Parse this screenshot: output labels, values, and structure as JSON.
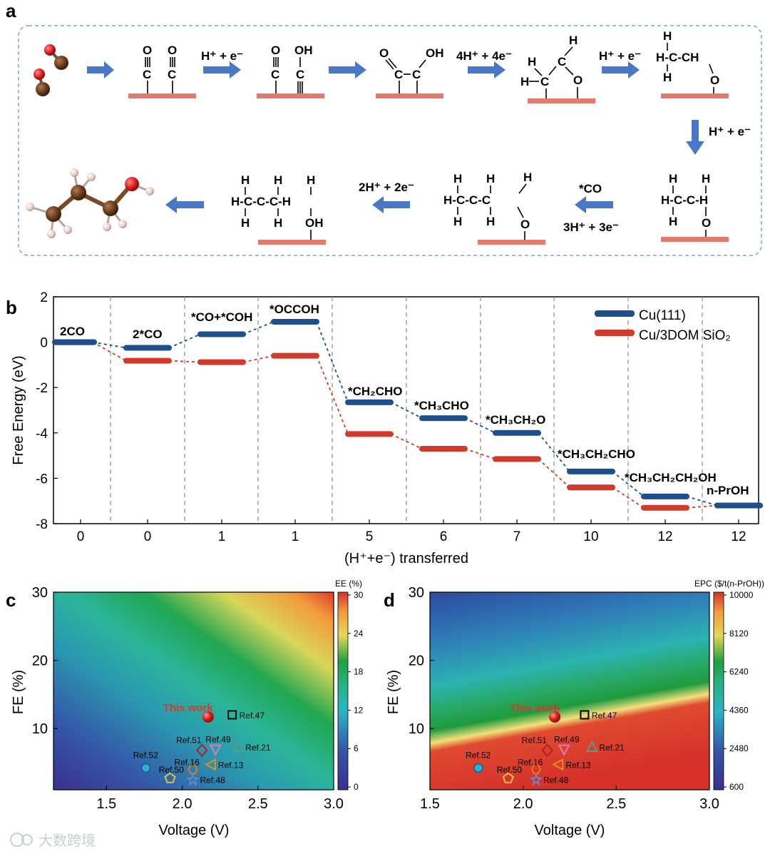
{
  "panel_labels": {
    "a": "a",
    "b": "b",
    "c": "c",
    "d": "d"
  },
  "colors": {
    "arrow": "#4a78c6",
    "surface": "#e27a6e",
    "cu111": "#1f4e8c",
    "cu3dom": "#d23a2b",
    "oxygen": "#e02020",
    "carbon": "#6b3e1e",
    "hydrogen": "#e8c8c4",
    "panel_border": "#7ea2cf"
  },
  "scheme": {
    "steps": {
      "s1": "H⁺ + e⁻",
      "s2": "4H⁺ + 4e⁻",
      "s3": "H⁺ + e⁻",
      "s4": "H⁺ + e⁻",
      "s5a": "*CO",
      "s5b": "3H⁺ + 3e⁻",
      "s6": "2H⁺ + 2e⁻"
    }
  },
  "chart_data": [
    {
      "type": "line",
      "panel": "b",
      "title": "",
      "xlabel": "(H⁺+e⁻) transferred",
      "ylabel": "Free Energy (eV)",
      "ylim": [
        -8,
        2
      ],
      "yticks": [
        "2",
        "0",
        "-2",
        "-4",
        "-6",
        "-8"
      ],
      "categories": [
        "0",
        "0",
        "1",
        "1",
        "5",
        "6",
        "7",
        "10",
        "12",
        "12"
      ],
      "species": [
        "2CO",
        "2*CO",
        "*CO+*COH",
        "*OCCOH",
        "*CH₂CHO",
        "*CH₃CHO",
        "*CH₃CH₂O",
        "*CH₃CH₂CHO",
        "*CH₃CH₂CH₂OH",
        "n-PrOH"
      ],
      "series": [
        {
          "name": "Cu(111)",
          "values": [
            0,
            -0.25,
            0.35,
            0.9,
            -2.65,
            -3.35,
            -4.0,
            -5.7,
            -6.8,
            -7.2
          ]
        },
        {
          "name": "Cu/3DOM SiO₂",
          "values": [
            0,
            -0.82,
            -0.88,
            -0.6,
            -4.05,
            -4.7,
            -5.15,
            -6.4,
            -7.3,
            -7.2
          ]
        }
      ]
    },
    {
      "type": "heatmap",
      "panel": "c",
      "xlabel": "Voltage (V)",
      "ylabel": "FE (%)",
      "xlim": [
        1.15,
        3.0
      ],
      "ylim": [
        1,
        30
      ],
      "xticks": [
        "1.5",
        "2.0",
        "2.5",
        "3.0"
      ],
      "yticks": [
        "30",
        "20",
        "10"
      ],
      "colorbar_title": "EE (%)",
      "colorbar_ticks": [
        "30",
        "24",
        "18",
        "12",
        "6",
        "0"
      ],
      "points": [
        {
          "label": "This work",
          "x": 2.17,
          "y": 11.7,
          "marker": "sphere-red"
        },
        {
          "label": "Ref.47",
          "x": 2.33,
          "y": 12.0,
          "marker": "square"
        },
        {
          "label": "Ref.51",
          "x": 2.13,
          "y": 6.8,
          "marker": "diamond"
        },
        {
          "label": "Ref.49",
          "x": 2.22,
          "y": 6.9,
          "marker": "triangle-down"
        },
        {
          "label": "Ref.21",
          "x": 2.37,
          "y": 7.3,
          "marker": "triangle-up"
        },
        {
          "label": "Ref.52",
          "x": 1.76,
          "y": 4.2,
          "marker": "circle-cyan"
        },
        {
          "label": "Ref.16",
          "x": 2.07,
          "y": 4.0,
          "marker": "hexagon"
        },
        {
          "label": "Ref.13",
          "x": 2.19,
          "y": 4.7,
          "marker": "triangle-left"
        },
        {
          "label": "Ref.50",
          "x": 1.92,
          "y": 2.7,
          "marker": "pentagon"
        },
        {
          "label": "Ref.48",
          "x": 2.07,
          "y": 2.5,
          "marker": "star"
        }
      ]
    },
    {
      "type": "heatmap",
      "panel": "d",
      "xlabel": "Voltage (V)",
      "ylabel": "FE (%)",
      "xlim": [
        1.5,
        3.0
      ],
      "ylim": [
        1,
        30
      ],
      "xticks": [
        "1.5",
        "2.0",
        "2.5",
        "3.0"
      ],
      "yticks": [
        "30",
        "20",
        "10"
      ],
      "colorbar_title": "EPC ($/t(n-PrOH))",
      "colorbar_ticks": [
        "10000",
        "8120",
        "6240",
        "4360",
        "2480",
        "600"
      ],
      "points": [
        {
          "label": "This work",
          "x": 2.17,
          "y": 11.7,
          "marker": "sphere-red"
        },
        {
          "label": "Ref.47",
          "x": 2.33,
          "y": 12.0,
          "marker": "square"
        },
        {
          "label": "Ref.51",
          "x": 2.13,
          "y": 6.8,
          "marker": "diamond"
        },
        {
          "label": "Ref.49",
          "x": 2.22,
          "y": 6.9,
          "marker": "triangle-down"
        },
        {
          "label": "Ref.21",
          "x": 2.37,
          "y": 7.3,
          "marker": "triangle-up"
        },
        {
          "label": "Ref.52",
          "x": 1.76,
          "y": 4.2,
          "marker": "circle-cyan"
        },
        {
          "label": "Ref.16",
          "x": 2.07,
          "y": 4.0,
          "marker": "hexagon"
        },
        {
          "label": "Ref.13",
          "x": 2.19,
          "y": 4.7,
          "marker": "triangle-left"
        },
        {
          "label": "Ref.50",
          "x": 1.92,
          "y": 2.7,
          "marker": "pentagon"
        },
        {
          "label": "Ref.48",
          "x": 2.07,
          "y": 2.5,
          "marker": "star"
        }
      ]
    }
  ],
  "watermark": "大数跨境"
}
